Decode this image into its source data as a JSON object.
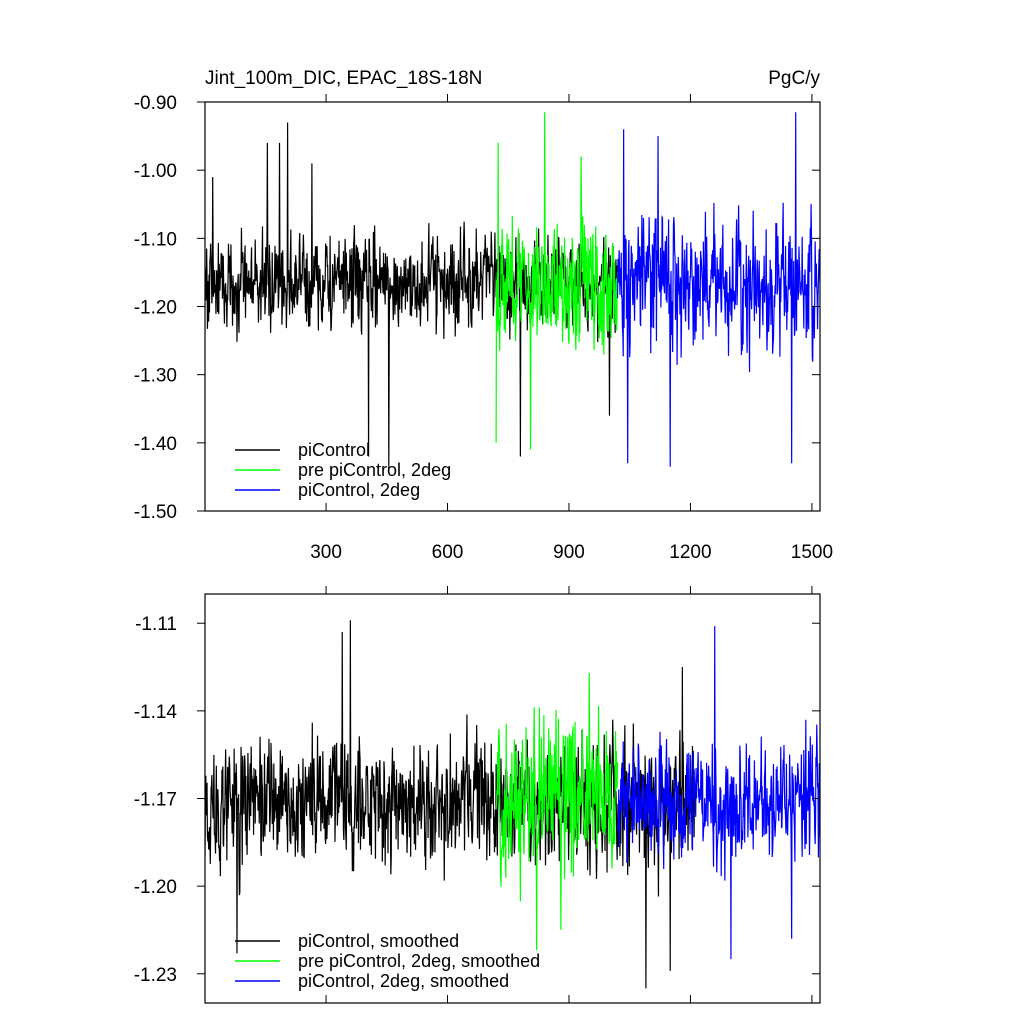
{
  "chart_data": [
    {
      "type": "line",
      "title_left": "Jint_100m_DIC, EPAC_18S-18N",
      "title_right": "PgC/y",
      "xlim": [
        1,
        1520
      ],
      "ylim": [
        -1.5,
        -0.9
      ],
      "xticks": [
        300,
        600,
        900,
        1200,
        1500
      ],
      "xtick_labels": [
        "300",
        "600",
        "900",
        "1200",
        "1500"
      ],
      "yticks": [
        -1.5,
        -1.4,
        -1.3,
        -1.2,
        -1.1,
        -1.0,
        -0.9
      ],
      "ytick_labels": [
        "-1.50",
        "-1.40",
        "-1.30",
        "-1.20",
        "-1.10",
        "-1.00",
        "-0.90"
      ],
      "legend_position": "bottom-left",
      "grid": false,
      "series": [
        {
          "name": "piControl",
          "color": "#000000",
          "x_start": 1,
          "x_end": 1020,
          "mean": -1.165,
          "amp": 0.055,
          "peaks": [
            [
              205,
              -0.93
            ],
            [
              155,
              -0.96
            ],
            [
              185,
              -0.96
            ],
            [
              265,
              -0.99
            ],
            [
              455,
              -1.44
            ],
            [
              405,
              -1.42
            ],
            [
              1000,
              -1.36
            ],
            [
              780,
              -1.42
            ],
            [
              20,
              -1.01
            ]
          ]
        },
        {
          "name": "pre piControl, 2deg",
          "color": "#00ff00",
          "x_start": 720,
          "x_end": 1020,
          "mean": -1.165,
          "amp": 0.07,
          "peaks": [
            [
              840,
              -0.915
            ],
            [
              725,
              -0.96
            ],
            [
              930,
              -0.98
            ],
            [
              805,
              -1.41
            ],
            [
              720,
              -1.4
            ]
          ]
        },
        {
          "name": "piControl, 2deg",
          "color": "#0000ff",
          "x_start": 1020,
          "x_end": 1520,
          "mean": -1.165,
          "amp": 0.075,
          "peaks": [
            [
              1460,
              -0.915
            ],
            [
              1035,
              -0.94
            ],
            [
              1120,
              -0.95
            ],
            [
              1150,
              -1.435
            ],
            [
              1045,
              -1.43
            ],
            [
              1450,
              -1.43
            ]
          ]
        }
      ]
    },
    {
      "type": "line",
      "xlim": [
        1,
        1520
      ],
      "ylim": [
        -1.24,
        -1.1
      ],
      "xticks": [
        300,
        600,
        900,
        1200,
        1500
      ],
      "yticks": [
        -1.23,
        -1.2,
        -1.17,
        -1.14,
        -1.11
      ],
      "ytick_labels": [
        "-1.23",
        "-1.20",
        "-1.17",
        "-1.14",
        "-1.11"
      ],
      "legend_position": "bottom-left",
      "grid": false,
      "series": [
        {
          "name": "piControl, smoothed",
          "color": "#000000",
          "x_start": 1,
          "x_end": 1210,
          "mean": -1.172,
          "amp": 0.017,
          "peaks": [
            [
              360,
              -1.109
            ],
            [
              340,
              -1.113
            ],
            [
              80,
              -1.223
            ],
            [
              1180,
              -1.125
            ],
            [
              1090,
              -1.235
            ],
            [
              1150,
              -1.229
            ]
          ]
        },
        {
          "name": "pre piControl, 2deg, smoothed",
          "color": "#00ff00",
          "x_start": 720,
          "x_end": 1020,
          "mean": -1.17,
          "amp": 0.02,
          "peaks": [
            [
              950,
              -1.127
            ],
            [
              820,
              -1.222
            ],
            [
              880,
              -1.215
            ]
          ]
        },
        {
          "name": "piControl, 2deg, smoothed",
          "color": "#0000ff",
          "x_start": 1020,
          "x_end": 1520,
          "mean": -1.172,
          "amp": 0.016,
          "peaks": [
            [
              1260,
              -1.111
            ],
            [
              1300,
              -1.225
            ],
            [
              1450,
              -1.218
            ]
          ]
        }
      ]
    }
  ]
}
